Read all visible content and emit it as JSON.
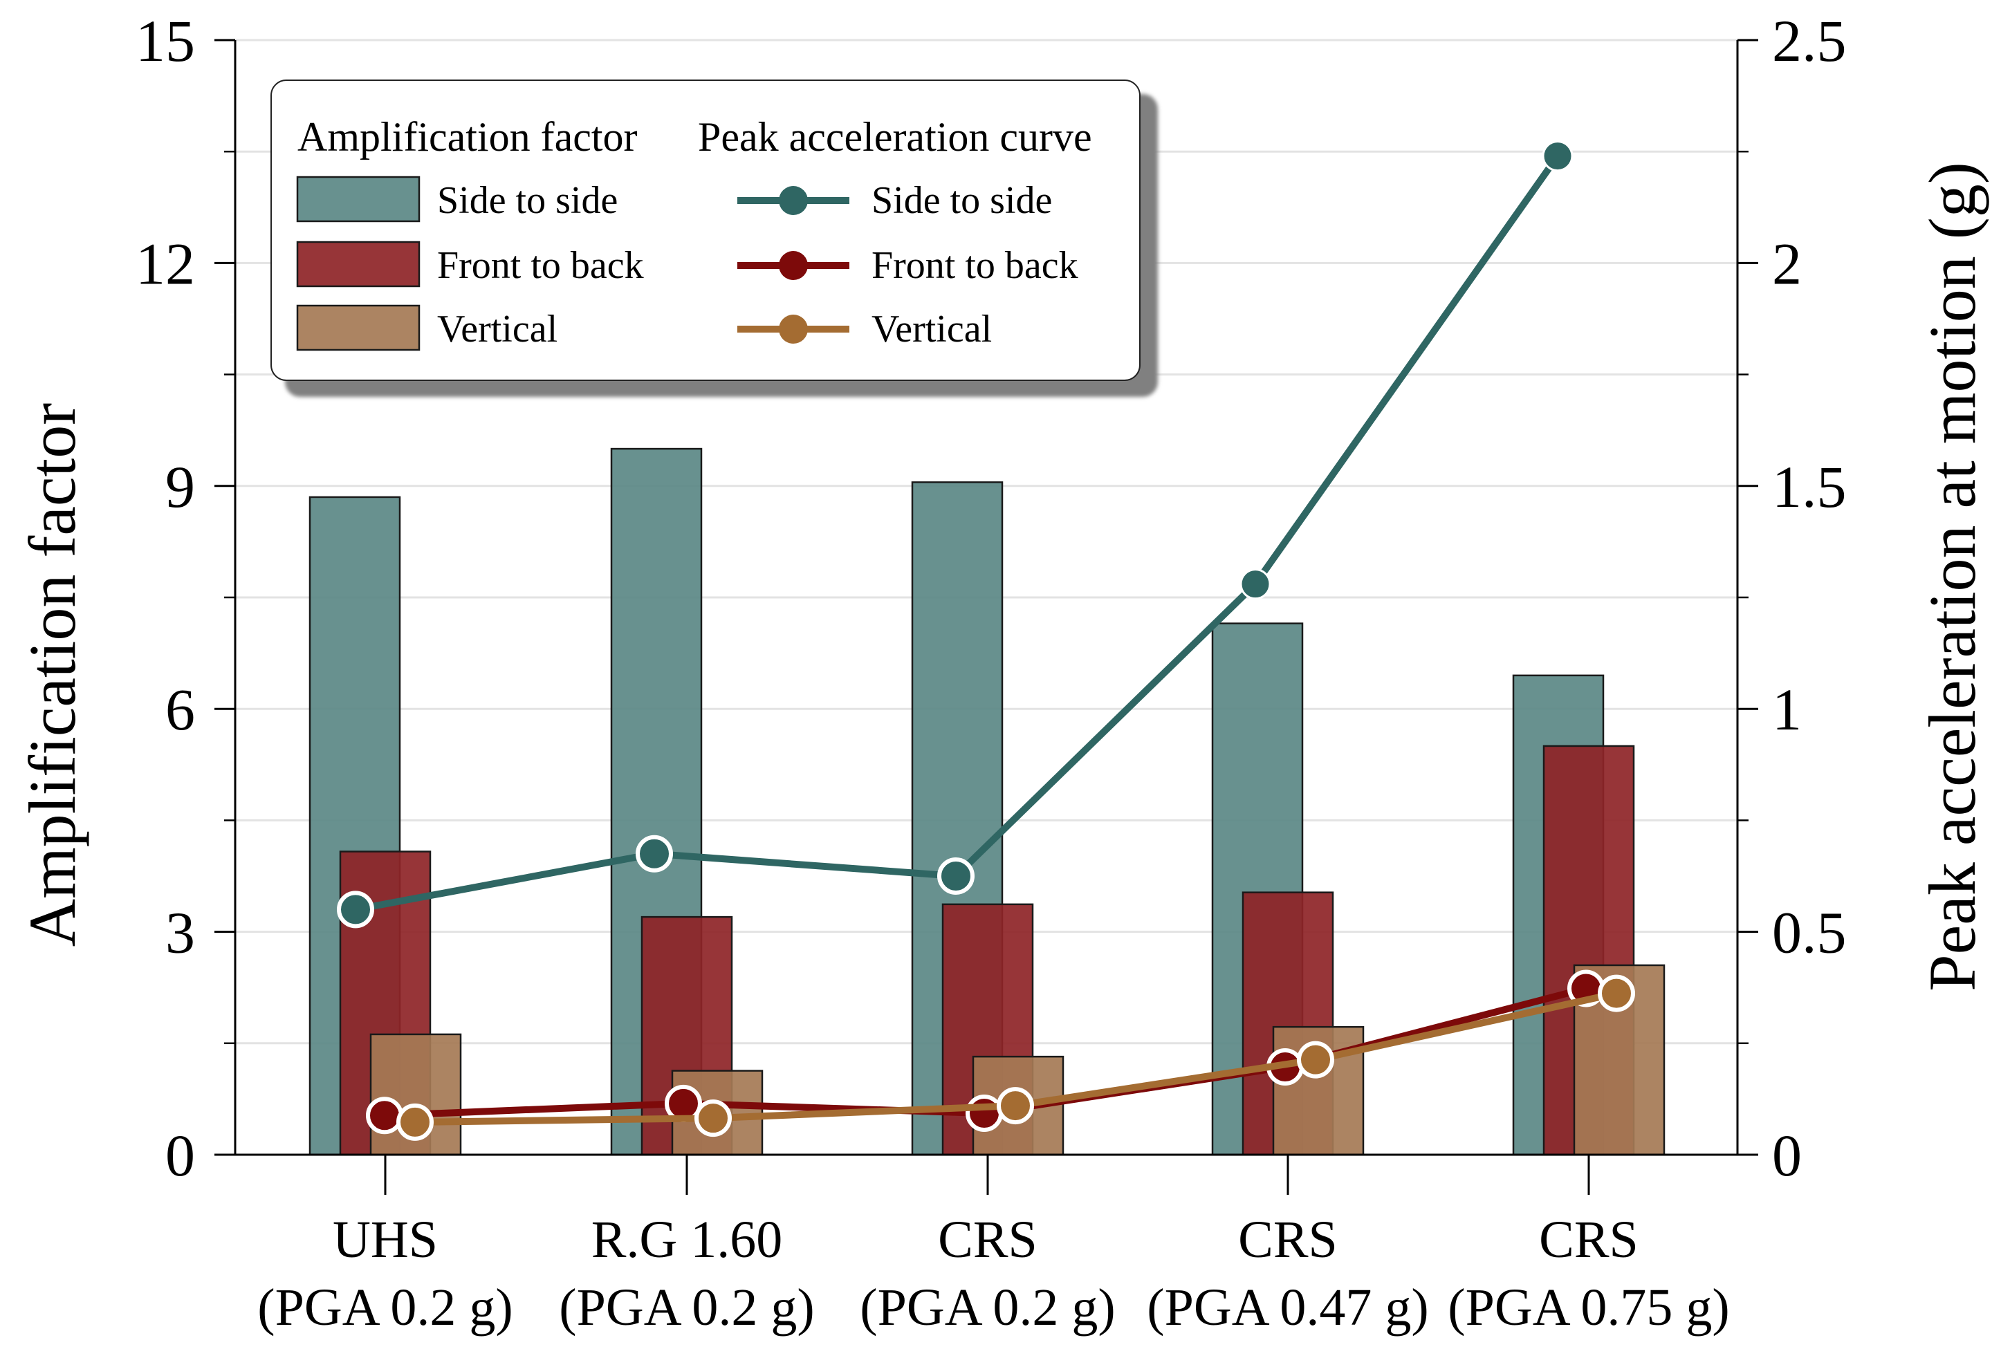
{
  "chart_data": {
    "type": "bar",
    "categories": [
      {
        "line1": "UHS",
        "line2": "(PGA 0.2 g)"
      },
      {
        "line1": "R.G 1.60",
        "line2": "(PGA 0.2 g)"
      },
      {
        "line1": "CRS",
        "line2": "(PGA 0.2 g)"
      },
      {
        "line1": "CRS",
        "line2": "(PGA 0.47 g)"
      },
      {
        "line1": "CRS",
        "line2": "(PGA 0.75 g)"
      }
    ],
    "ylabel": "Amplification factor",
    "y2label": "Peak acceleration at motion (g)",
    "ylim": [
      0,
      15
    ],
    "y2lim": [
      0,
      2.5
    ],
    "yticks": [
      "0",
      "3",
      "6",
      "9",
      "12",
      "15"
    ],
    "y2ticks": [
      "0",
      "0.5",
      "1",
      "1.5",
      "2",
      "2.5"
    ],
    "grid": true,
    "bar_series": [
      {
        "name": "Side to side",
        "color": "#5b8886",
        "values": [
          8.85,
          9.5,
          9.05,
          7.15,
          6.45
        ]
      },
      {
        "name": "Front to back",
        "color": "#8e2427",
        "values": [
          4.08,
          3.2,
          3.37,
          3.53,
          5.5
        ]
      },
      {
        "name": "Vertical",
        "color": "#a57a55",
        "values": [
          1.62,
          1.13,
          1.32,
          1.72,
          2.55
        ]
      }
    ],
    "line_series": [
      {
        "name": "Side to side",
        "color": "#2f6663",
        "values": [
          0.55,
          0.675,
          0.625,
          1.28,
          2.24
        ]
      },
      {
        "name": "Front to back",
        "color": "#7d0a0a",
        "values": [
          0.088,
          0.115,
          0.093,
          0.197,
          0.373
        ]
      },
      {
        "name": "Vertical",
        "color": "#a46c32",
        "values": [
          0.073,
          0.082,
          0.11,
          0.213,
          0.362
        ]
      }
    ],
    "legend": {
      "position": "top-left",
      "bar_title": "Amplification factor",
      "line_title": "Peak acceleration curve"
    }
  }
}
